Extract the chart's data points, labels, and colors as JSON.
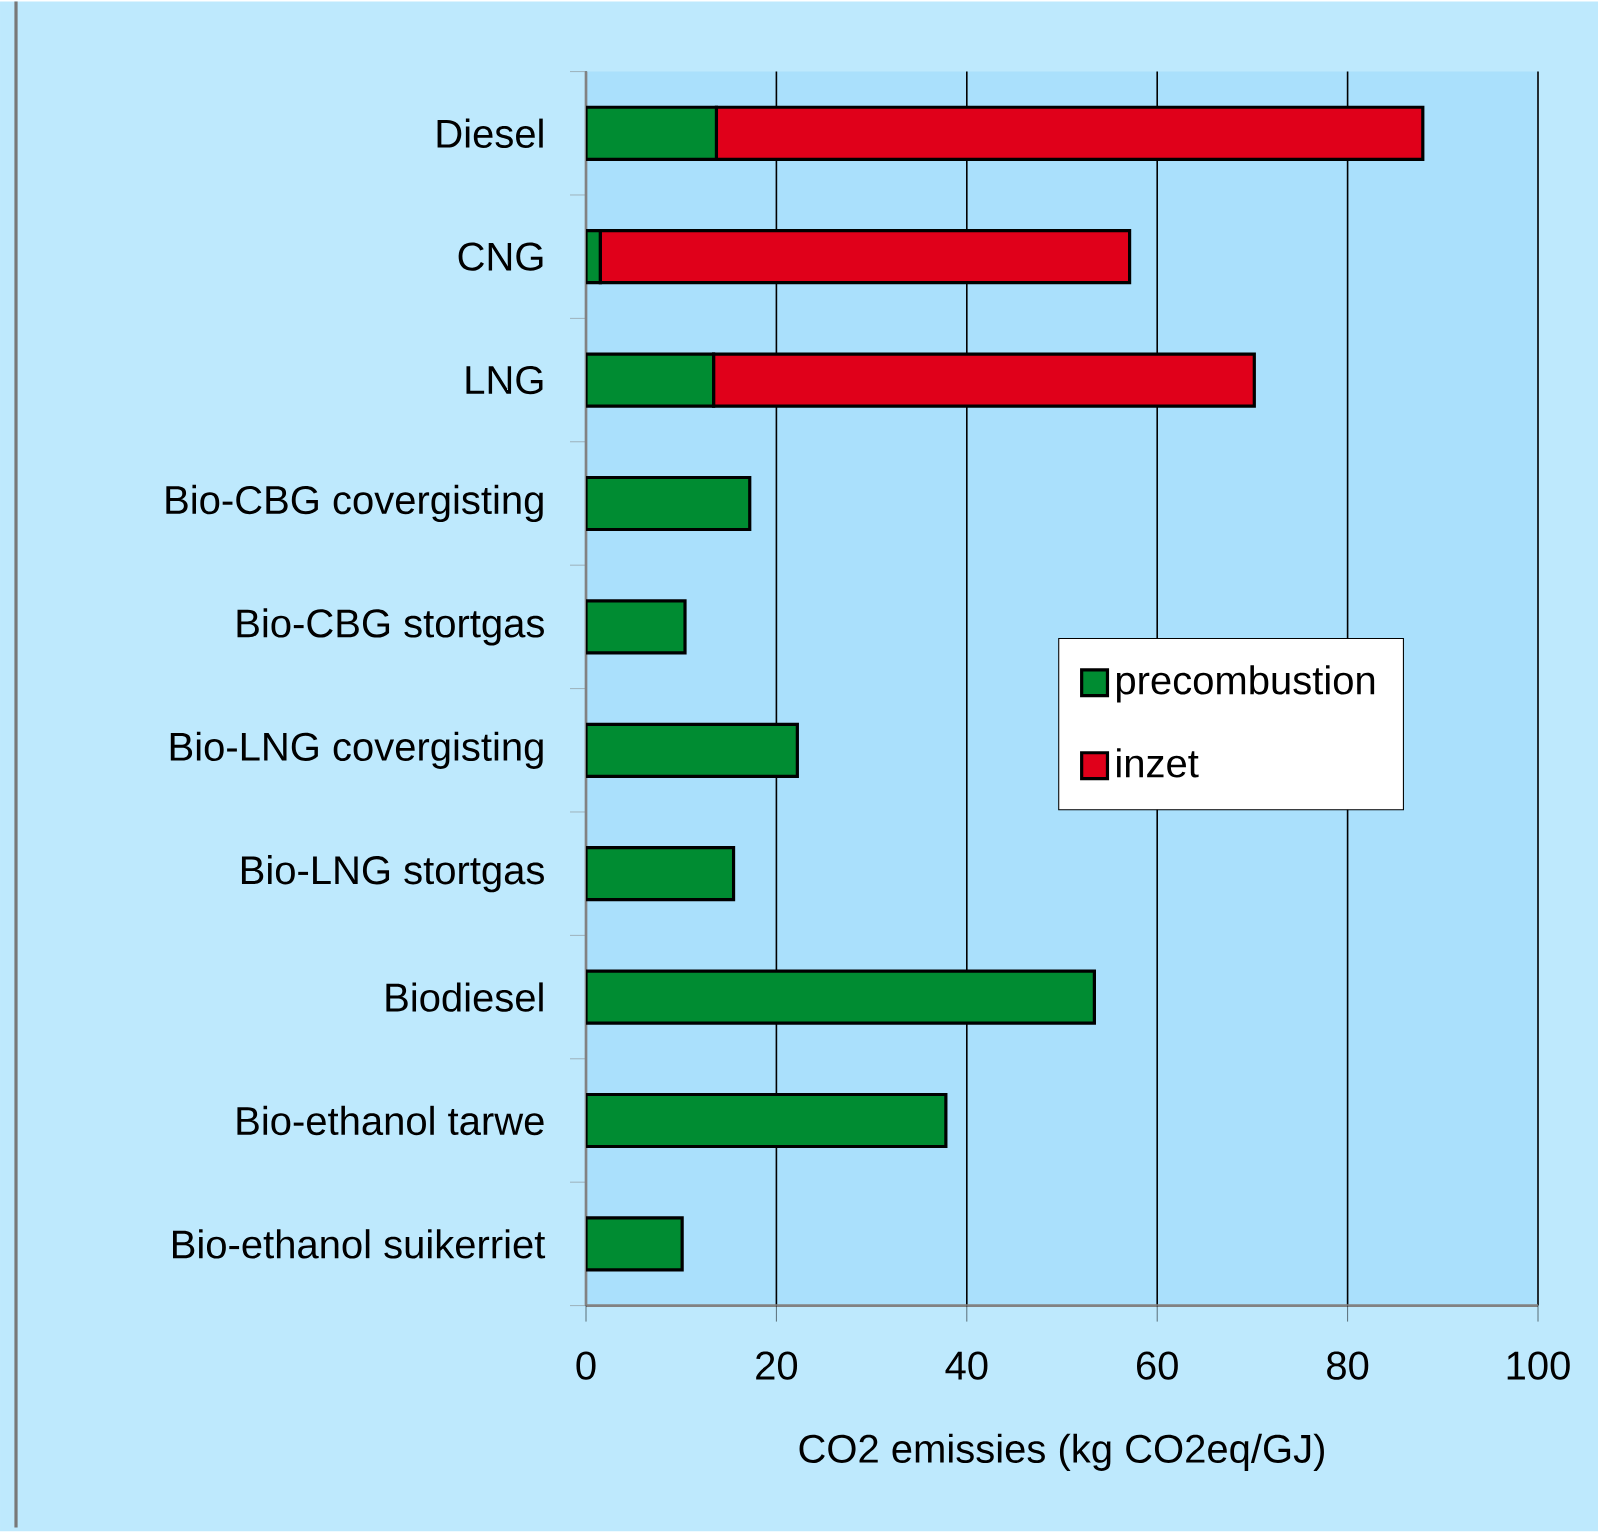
{
  "chart_data": {
    "type": "bar",
    "orientation": "horizontal",
    "stacked": true,
    "xlabel": "CO2 emissies (kg CO2eq/GJ)",
    "categories": [
      "Diesel",
      "CNG",
      "LNG",
      "Bio-CBG covergisting",
      "Bio-CBG stortgas",
      "Bio-LNG covergisting",
      "Bio-LNG stortgas",
      "Biodiesel",
      "Bio-ethanol tarwe",
      "Bio-ethanol suikerriet"
    ],
    "series": [
      {
        "name": "precombustion",
        "color": "#008c32",
        "values": [
          13.7,
          1.5,
          13.4,
          17.2,
          10.4,
          22.2,
          15.5,
          53.4,
          37.8,
          10.1
        ]
      },
      {
        "name": "inzet",
        "color": "#e0001a",
        "values": [
          74.2,
          55.6,
          56.8,
          null,
          null,
          null,
          null,
          null,
          null,
          null
        ]
      }
    ],
    "xlim": [
      0,
      100
    ],
    "xticks": [
      0,
      20,
      40,
      60,
      80,
      100
    ],
    "grid": "x",
    "legend": "right"
  }
}
